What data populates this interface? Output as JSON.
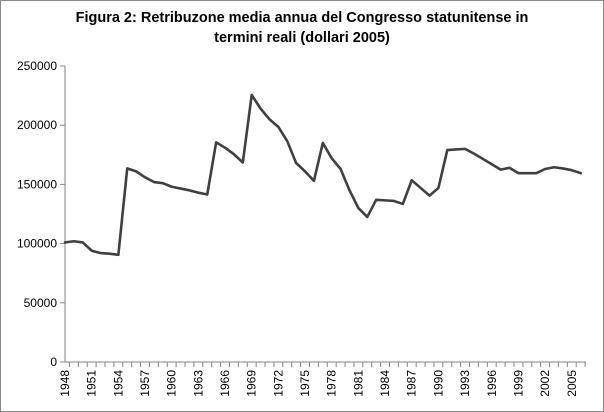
{
  "chart_data": {
    "type": "line",
    "title_lines": [
      "Figura 2: Retribuzone media annua del Congresso statunitense in",
      "termini reali (dollari 2005)"
    ],
    "xlabel": "",
    "ylabel": "",
    "ylim": [
      0,
      250000
    ],
    "y_ticks": [
      0,
      50000,
      100000,
      150000,
      200000,
      250000
    ],
    "y_tick_labels": [
      "0",
      "50000",
      "100000",
      "150000",
      "200000",
      "250000"
    ],
    "x_tick_labels": [
      "1948",
      "1951",
      "1954",
      "1957",
      "1960",
      "1963",
      "1966",
      "1969",
      "1972",
      "1975",
      "1978",
      "1981",
      "1984",
      "1987",
      "1990",
      "1993",
      "1996",
      "1999",
      "2002",
      "2005"
    ],
    "grid": false,
    "legend": "none",
    "line_color": "#404040",
    "x": [
      1948,
      1949,
      1950,
      1951,
      1952,
      1953,
      1954,
      1955,
      1956,
      1957,
      1958,
      1959,
      1960,
      1961,
      1962,
      1963,
      1964,
      1965,
      1966,
      1967,
      1968,
      1969,
      1970,
      1971,
      1972,
      1973,
      1974,
      1975,
      1976,
      1977,
      1978,
      1979,
      1980,
      1981,
      1982,
      1983,
      1984,
      1985,
      1986,
      1987,
      1988,
      1989,
      1990,
      1991,
      1992,
      1993,
      1994,
      1995,
      1996,
      1997,
      1998,
      1999,
      2000,
      2001,
      2002,
      2003,
      2004,
      2005,
      2006
    ],
    "series": [
      {
        "values": [
          101000,
          102000,
          101000,
          94000,
          92000,
          91500,
          90500,
          163500,
          161000,
          156000,
          152000,
          151000,
          148000,
          146500,
          145000,
          143000,
          141500,
          185500,
          181000,
          175500,
          168500,
          225500,
          214000,
          205000,
          198500,
          186500,
          168000,
          161000,
          153000,
          185000,
          172000,
          163000,
          145000,
          130000,
          122500,
          137000,
          136500,
          136000,
          133500,
          153500,
          147000,
          140500,
          147000,
          179000,
          179500,
          180000,
          176000,
          171500,
          167000,
          162500,
          164000,
          159500,
          159500,
          159500,
          163000,
          164500,
          163500,
          162000,
          159500
        ]
      }
    ]
  }
}
